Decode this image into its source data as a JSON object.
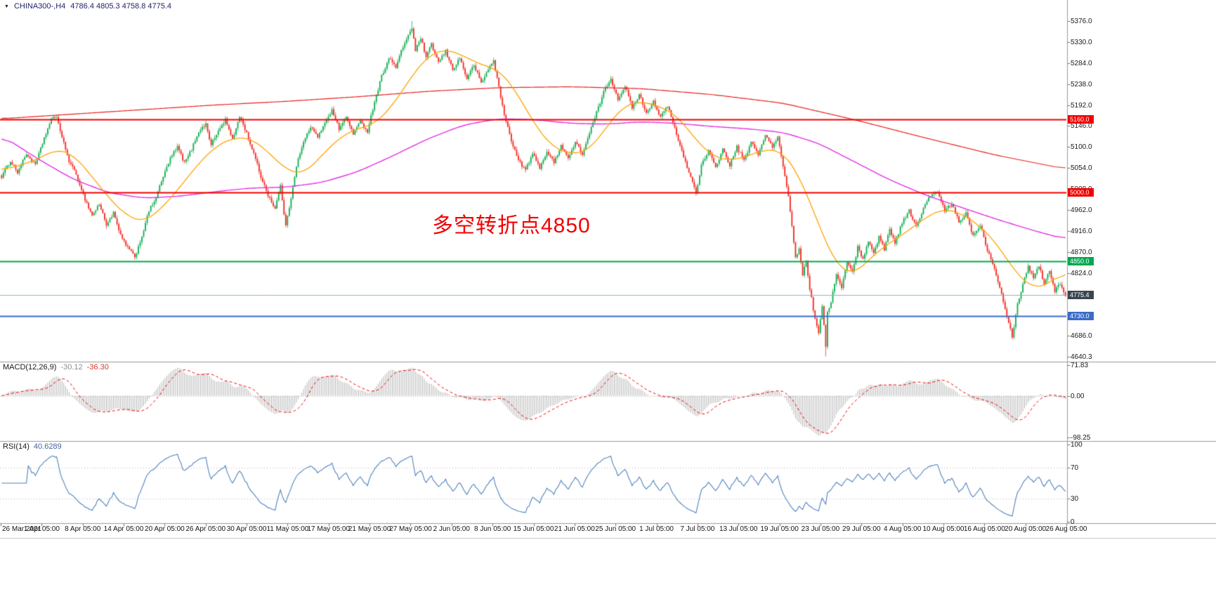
{
  "header": {
    "dropdown": "▼",
    "symbol": "CHINA300-,H4",
    "quote": "4786.4 4805.3 4758.8 4775.4"
  },
  "x_axis": {
    "labels": [
      "26 Mar 2021",
      "1 Apr 05:00",
      "8 Apr 05:00",
      "14 Apr 05:00",
      "20 Apr 05:00",
      "26 Apr 05:00",
      "30 Apr 05:00",
      "11 May 05:00",
      "17 May 05:00",
      "21 May 05:00",
      "27 May 05:00",
      "2 Jun 05:00",
      "8 Jun 05:00",
      "15 Jun 05:00",
      "21 Jun 05:00",
      "25 Jun 05:00",
      "1 Jul 05:00",
      "7 Jul 05:00",
      "13 Jul 05:00",
      "19 Jul 05:00",
      "23 Jul 05:00",
      "29 Jul 05:00",
      "4 Aug 05:00",
      "10 Aug 05:00",
      "16 Aug 05:00",
      "20 Aug 05:00",
      "26 Aug 05:00"
    ]
  },
  "chart_data": {
    "type": "candlestick",
    "symbol": "CHINA300-",
    "timeframe": "H4",
    "title": "CHINA300-,H4",
    "ohlc_current": {
      "open": 4786.4,
      "high": 4805.3,
      "low": 4758.8,
      "close": 4775.4
    },
    "bars": 600,
    "ylim": [
      4640.3,
      5376.0
    ],
    "y_ticks": [
      "5376.0",
      "5330.0",
      "5284.0",
      "5238.0",
      "5192.0",
      "5146.0",
      "5100.0",
      "5054.0",
      "5008.0",
      "4962.0",
      "4916.0",
      "4870.0",
      "4824.0",
      "4778.0",
      "4732.0",
      "4686.0",
      "4640.3"
    ],
    "annotation": {
      "text": "多空转折点4850",
      "color": "#f20000"
    },
    "candle_colors": {
      "up": "#0fae4f",
      "down": "#f22b23"
    },
    "extremes": {
      "high_bar": 231,
      "high": 5376.0,
      "low_bar": 464,
      "low": 4641.0
    },
    "estimated_close_path": [
      [
        0,
        5035
      ],
      [
        5,
        5070
      ],
      [
        9,
        5045
      ],
      [
        14,
        5085
      ],
      [
        19,
        5060
      ],
      [
        24,
        5120
      ],
      [
        28,
        5160
      ],
      [
        31,
        5168
      ],
      [
        34,
        5120
      ],
      [
        38,
        5070
      ],
      [
        43,
        5030
      ],
      [
        47,
        4985
      ],
      [
        51,
        4950
      ],
      [
        55,
        4975
      ],
      [
        59,
        4930
      ],
      [
        63,
        4955
      ],
      [
        67,
        4905
      ],
      [
        71,
        4880
      ],
      [
        75,
        4858
      ],
      [
        79,
        4905
      ],
      [
        83,
        4960
      ],
      [
        87,
        4990
      ],
      [
        91,
        5035
      ],
      [
        95,
        5075
      ],
      [
        99,
        5100
      ],
      [
        103,
        5065
      ],
      [
        107,
        5095
      ],
      [
        111,
        5135
      ],
      [
        115,
        5150
      ],
      [
        118,
        5105
      ],
      [
        122,
        5135
      ],
      [
        126,
        5160
      ],
      [
        130,
        5115
      ],
      [
        134,
        5168
      ],
      [
        138,
        5130
      ],
      [
        142,
        5085
      ],
      [
        146,
        5035
      ],
      [
        150,
        4995
      ],
      [
        154,
        4965
      ],
      [
        157,
        5015
      ],
      [
        160,
        4925
      ],
      [
        163,
        4990
      ],
      [
        166,
        5060
      ],
      [
        170,
        5110
      ],
      [
        174,
        5145
      ],
      [
        178,
        5120
      ],
      [
        182,
        5155
      ],
      [
        186,
        5180
      ],
      [
        190,
        5140
      ],
      [
        194,
        5165
      ],
      [
        198,
        5130
      ],
      [
        202,
        5155
      ],
      [
        206,
        5135
      ],
      [
        210,
        5200
      ],
      [
        214,
        5255
      ],
      [
        218,
        5295
      ],
      [
        222,
        5275
      ],
      [
        226,
        5320
      ],
      [
        229,
        5345
      ],
      [
        231,
        5362
      ],
      [
        233,
        5310
      ],
      [
        236,
        5340
      ],
      [
        239,
        5295
      ],
      [
        242,
        5325
      ],
      [
        246,
        5285
      ],
      [
        250,
        5310
      ],
      [
        254,
        5270
      ],
      [
        258,
        5295
      ],
      [
        262,
        5250
      ],
      [
        266,
        5280
      ],
      [
        270,
        5240
      ],
      [
        274,
        5270
      ],
      [
        277,
        5290
      ],
      [
        280,
        5230
      ],
      [
        283,
        5170
      ],
      [
        287,
        5115
      ],
      [
        291,
        5070
      ],
      [
        295,
        5050
      ],
      [
        299,
        5085
      ],
      [
        303,
        5055
      ],
      [
        307,
        5090
      ],
      [
        311,
        5065
      ],
      [
        315,
        5105
      ],
      [
        319,
        5075
      ],
      [
        323,
        5110
      ],
      [
        327,
        5085
      ],
      [
        331,
        5130
      ],
      [
        335,
        5175
      ],
      [
        339,
        5220
      ],
      [
        343,
        5250
      ],
      [
        347,
        5205
      ],
      [
        351,
        5235
      ],
      [
        355,
        5185
      ],
      [
        359,
        5215
      ],
      [
        363,
        5175
      ],
      [
        367,
        5200
      ],
      [
        371,
        5165
      ],
      [
        375,
        5190
      ],
      [
        379,
        5140
      ],
      [
        383,
        5090
      ],
      [
        387,
        5045
      ],
      [
        391,
        5000
      ],
      [
        394,
        5060
      ],
      [
        398,
        5090
      ],
      [
        402,
        5055
      ],
      [
        406,
        5095
      ],
      [
        410,
        5060
      ],
      [
        414,
        5100
      ],
      [
        418,
        5070
      ],
      [
        422,
        5110
      ],
      [
        426,
        5085
      ],
      [
        430,
        5125
      ],
      [
        434,
        5100
      ],
      [
        437,
        5120
      ],
      [
        440,
        5060
      ],
      [
        443,
        4990
      ],
      [
        445,
        4930
      ],
      [
        447,
        4855
      ],
      [
        449,
        4880
      ],
      [
        451,
        4820
      ],
      [
        453,
        4852
      ],
      [
        455,
        4790
      ],
      [
        457,
        4745
      ],
      [
        458,
        4725
      ],
      [
        460,
        4695
      ],
      [
        462,
        4748
      ],
      [
        464,
        4665
      ],
      [
        465,
        4738
      ],
      [
        467,
        4762
      ],
      [
        470,
        4820
      ],
      [
        473,
        4790
      ],
      [
        476,
        4850
      ],
      [
        479,
        4825
      ],
      [
        482,
        4880
      ],
      [
        485,
        4855
      ],
      [
        488,
        4895
      ],
      [
        491,
        4865
      ],
      [
        494,
        4905
      ],
      [
        497,
        4875
      ],
      [
        500,
        4920
      ],
      [
        503,
        4890
      ],
      [
        507,
        4935
      ],
      [
        511,
        4960
      ],
      [
        515,
        4925
      ],
      [
        519,
        4965
      ],
      [
        523,
        4995
      ],
      [
        527,
        5000
      ],
      [
        531,
        4960
      ],
      [
        535,
        4975
      ],
      [
        539,
        4935
      ],
      [
        543,
        4955
      ],
      [
        547,
        4905
      ],
      [
        551,
        4930
      ],
      [
        555,
        4875
      ],
      [
        559,
        4835
      ],
      [
        563,
        4780
      ],
      [
        566,
        4730
      ],
      [
        569,
        4685
      ],
      [
        572,
        4755
      ],
      [
        575,
        4800
      ],
      [
        578,
        4838
      ],
      [
        581,
        4815
      ],
      [
        584,
        4840
      ],
      [
        587,
        4800
      ],
      [
        590,
        4830
      ],
      [
        593,
        4785
      ],
      [
        596,
        4800
      ],
      [
        599,
        4775
      ]
    ],
    "moving_averages": [
      {
        "name": "slow-ma",
        "color": "#e8201e",
        "width": 1.2,
        "path": [
          [
            0,
            5162
          ],
          [
            40,
            5172
          ],
          [
            80,
            5182
          ],
          [
            120,
            5192
          ],
          [
            160,
            5200
          ],
          [
            200,
            5210
          ],
          [
            240,
            5222
          ],
          [
            280,
            5230
          ],
          [
            320,
            5232
          ],
          [
            360,
            5228
          ],
          [
            400,
            5215
          ],
          [
            440,
            5196
          ],
          [
            480,
            5160
          ],
          [
            520,
            5120
          ],
          [
            560,
            5082
          ],
          [
            599,
            5052
          ]
        ]
      },
      {
        "name": "medium-ma",
        "color": "#e332e3",
        "width": 1.4,
        "path": [
          [
            0,
            5125
          ],
          [
            20,
            5075
          ],
          [
            40,
            5030
          ],
          [
            60,
            5000
          ],
          [
            80,
            4988
          ],
          [
            100,
            4992
          ],
          [
            120,
            5002
          ],
          [
            140,
            5010
          ],
          [
            160,
            5012
          ],
          [
            180,
            5022
          ],
          [
            200,
            5045
          ],
          [
            220,
            5080
          ],
          [
            240,
            5118
          ],
          [
            260,
            5148
          ],
          [
            280,
            5162
          ],
          [
            300,
            5160
          ],
          [
            320,
            5152
          ],
          [
            340,
            5150
          ],
          [
            360,
            5155
          ],
          [
            380,
            5152
          ],
          [
            400,
            5145
          ],
          [
            420,
            5140
          ],
          [
            440,
            5132
          ],
          [
            460,
            5108
          ],
          [
            480,
            5068
          ],
          [
            500,
            5028
          ],
          [
            520,
            4995
          ],
          [
            540,
            4968
          ],
          [
            560,
            4942
          ],
          [
            580,
            4918
          ],
          [
            599,
            4898
          ]
        ]
      },
      {
        "name": "fast-ma",
        "color": "#ffa200",
        "width": 1.3,
        "path": [
          [
            0,
            5048
          ],
          [
            10,
            5060
          ],
          [
            20,
            5072
          ],
          [
            30,
            5095
          ],
          [
            40,
            5085
          ],
          [
            50,
            5040
          ],
          [
            60,
            4990
          ],
          [
            70,
            4950
          ],
          [
            80,
            4935
          ],
          [
            90,
            4965
          ],
          [
            100,
            5010
          ],
          [
            110,
            5060
          ],
          [
            120,
            5100
          ],
          [
            130,
            5120
          ],
          [
            140,
            5120
          ],
          [
            150,
            5090
          ],
          [
            160,
            5050
          ],
          [
            170,
            5040
          ],
          [
            180,
            5080
          ],
          [
            190,
            5120
          ],
          [
            200,
            5140
          ],
          [
            210,
            5150
          ],
          [
            220,
            5190
          ],
          [
            230,
            5250
          ],
          [
            240,
            5300
          ],
          [
            250,
            5315
          ],
          [
            260,
            5300
          ],
          [
            270,
            5280
          ],
          [
            280,
            5270
          ],
          [
            290,
            5220
          ],
          [
            300,
            5150
          ],
          [
            310,
            5100
          ],
          [
            320,
            5085
          ],
          [
            330,
            5090
          ],
          [
            340,
            5140
          ],
          [
            350,
            5190
          ],
          [
            360,
            5200
          ],
          [
            370,
            5190
          ],
          [
            380,
            5170
          ],
          [
            390,
            5120
          ],
          [
            400,
            5080
          ],
          [
            410,
            5070
          ],
          [
            420,
            5080
          ],
          [
            430,
            5095
          ],
          [
            440,
            5090
          ],
          [
            450,
            5030
          ],
          [
            460,
            4930
          ],
          [
            470,
            4840
          ],
          [
            480,
            4820
          ],
          [
            490,
            4860
          ],
          [
            500,
            4890
          ],
          [
            510,
            4915
          ],
          [
            520,
            4945
          ],
          [
            530,
            4965
          ],
          [
            540,
            4955
          ],
          [
            550,
            4930
          ],
          [
            560,
            4890
          ],
          [
            570,
            4830
          ],
          [
            580,
            4790
          ],
          [
            590,
            4800
          ],
          [
            599,
            4830
          ]
        ]
      }
    ],
    "levels": [
      {
        "value": 5160.0,
        "label": "5160.0",
        "tag_color": "#f00000",
        "line_color": "#f00000",
        "line_width": 1.8
      },
      {
        "value": 5000.0,
        "label": "5000.0",
        "tag_color": "#f00000",
        "line_color": "#f00000",
        "line_width": 1.8
      },
      {
        "value": 4850.0,
        "label": "4850.0",
        "tag_color": "#00a94f",
        "line_color": "#00a94f",
        "line_width": 1.8
      },
      {
        "value": 4775.4,
        "label": "4775.4",
        "tag_color": "#39464e",
        "line_color": "#8fb0c4",
        "line_width": 1
      },
      {
        "value": 4730.0,
        "label": "4730.0",
        "tag_color": "#3a6cc8",
        "line_color": "#3a6cc8",
        "line_width": 2.2
      }
    ],
    "indicators": {
      "macd": {
        "name": "MACD(12,26,9)",
        "fast": 12,
        "slow": 26,
        "signal": 9,
        "value_main": "-30.12",
        "value_signal": "-36.30",
        "range": [
          -98.25,
          71.83
        ],
        "ticks": [
          "71.83",
          "0.00",
          "-98.25"
        ],
        "histogram_color": "#b5b5b5",
        "signal_color": "#f20000"
      },
      "rsi": {
        "name": "RSI(14)",
        "period": 14,
        "value": "40.6289",
        "range": [
          0,
          100
        ],
        "ticks": [
          "100",
          "70",
          "30",
          "0"
        ],
        "levels": [
          70,
          30
        ],
        "line_color": "#4f81bd"
      }
    }
  }
}
